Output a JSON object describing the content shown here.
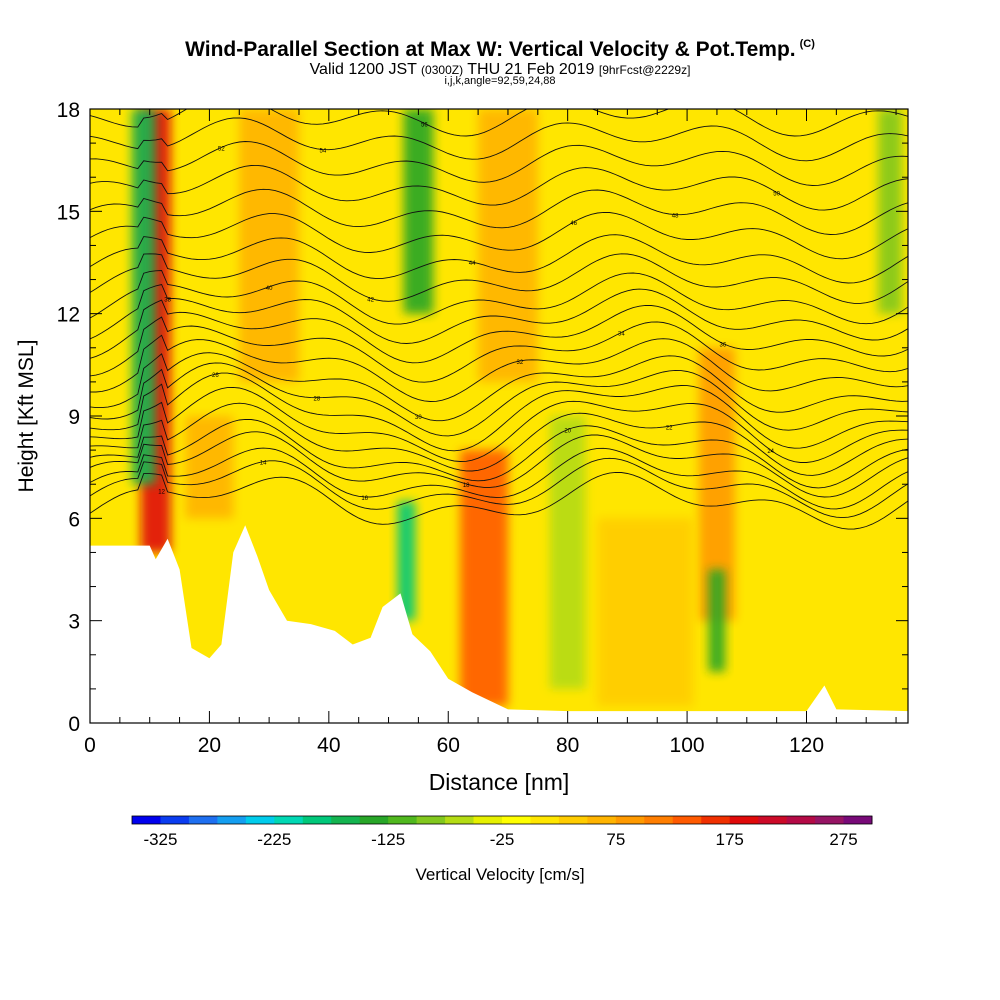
{
  "title": {
    "main": "Wind-Parallel Section at Max W: Vertical Velocity & Pot.Temp.",
    "copyright": "(C)",
    "valid_a": "Valid 1200 JST",
    "valid_z": "(0300Z)",
    "valid_b": "THU 21 Feb 2019",
    "fcst": "[9hrFcst@2229z]",
    "indices": "i,j,k,angle=92,59,24,88"
  },
  "chart_data": {
    "type": "heatmap",
    "xlabel": "Distance [nm]",
    "ylabel": "Height [Kft MSL]",
    "xlim": [
      0,
      137
    ],
    "ylim": [
      0,
      18
    ],
    "x_ticks": [
      0,
      20,
      40,
      60,
      80,
      100,
      120
    ],
    "y_ticks": [
      0,
      3,
      6,
      9,
      12,
      15,
      18
    ],
    "colorbar": {
      "label": "Vertical Velocity [cm/s]",
      "tick_labels": [
        -325,
        -225,
        -125,
        -25,
        75,
        175,
        275
      ],
      "range": [
        -350,
        300
      ],
      "colors": [
        "#0000ee",
        "#0a3cf0",
        "#1e6ff0",
        "#149ef0",
        "#00ccec",
        "#00d8b4",
        "#00c87a",
        "#14b450",
        "#28a628",
        "#50b81e",
        "#82c81e",
        "#b4dc14",
        "#e6f000",
        "#ffff00",
        "#ffe600",
        "#ffcc00",
        "#ffb400",
        "#ff9a00",
        "#ff7e00",
        "#ff5a00",
        "#f03000",
        "#e00a0a",
        "#cc0a28",
        "#b40a46",
        "#961464",
        "#780a78"
      ]
    },
    "terrain_kft": [
      [
        0,
        5.2
      ],
      [
        10,
        5.2
      ],
      [
        11,
        4.8
      ],
      [
        13,
        5.4
      ],
      [
        15,
        4.5
      ],
      [
        17,
        2.2
      ],
      [
        20,
        1.9
      ],
      [
        22,
        2.3
      ],
      [
        24,
        5.0
      ],
      [
        26,
        5.8
      ],
      [
        28,
        4.9
      ],
      [
        30,
        3.9
      ],
      [
        33,
        3.0
      ],
      [
        37,
        2.9
      ],
      [
        41,
        2.7
      ],
      [
        44,
        2.3
      ],
      [
        47,
        2.5
      ],
      [
        49,
        3.4
      ],
      [
        52,
        3.8
      ],
      [
        54,
        2.6
      ],
      [
        57,
        2.1
      ],
      [
        60,
        1.3
      ],
      [
        64,
        0.9
      ],
      [
        70,
        0.4
      ],
      [
        80,
        0.35
      ],
      [
        120,
        0.35
      ],
      [
        123,
        1.1
      ],
      [
        125,
        0.4
      ],
      [
        137,
        0.35
      ]
    ],
    "updrafts": [
      {
        "x": 11,
        "z0": 5,
        "z1": 18,
        "w": 2.5,
        "value": 180
      },
      {
        "x": 30,
        "z0": 10,
        "z1": 18,
        "w": 5,
        "value": 60
      },
      {
        "x": 66,
        "z0": 0.5,
        "z1": 8,
        "w": 4,
        "value": 130
      },
      {
        "x": 70,
        "z0": 10,
        "z1": 18,
        "w": 5,
        "value": 60
      },
      {
        "x": 105,
        "z0": 3,
        "z1": 11,
        "w": 3,
        "value": 90
      },
      {
        "x": 93,
        "z0": 0.5,
        "z1": 6,
        "w": 8,
        "value": 30
      },
      {
        "x": 20,
        "z0": 6,
        "z1": 9,
        "w": 4,
        "value": 60
      }
    ],
    "downdrafts": [
      {
        "x": 9,
        "z0": 7,
        "z1": 18,
        "w": 2,
        "value": -170
      },
      {
        "x": 53,
        "z0": 3,
        "z1": 6.5,
        "w": 1.5,
        "value": -190
      },
      {
        "x": 55,
        "z0": 12,
        "z1": 18,
        "w": 2.5,
        "value": -150
      },
      {
        "x": 105,
        "z0": 1.5,
        "z1": 4.5,
        "w": 1.4,
        "value": -130
      },
      {
        "x": 80,
        "z0": 1,
        "z1": 9,
        "w": 3,
        "value": -70
      },
      {
        "x": 134,
        "z0": 12,
        "z1": 18,
        "w": 2,
        "value": -90
      }
    ],
    "theta_contours": {
      "z_base_kft": [
        6.5,
        6.9,
        7.2,
        7.6,
        7.9,
        8.3,
        8.7,
        9.1,
        9.5,
        9.9,
        10.4,
        10.9,
        11.4,
        11.9,
        12.4,
        13.0,
        13.6,
        14.3,
        15.0,
        15.7,
        16.4,
        17.1,
        17.8
      ],
      "labels": [
        "12",
        "14",
        "16",
        "18",
        "20",
        "22",
        "24",
        "26",
        "28",
        "30",
        "32",
        "34",
        "36",
        "38",
        "40",
        "42",
        "44",
        "46",
        "48",
        "50",
        "52",
        "54",
        "56"
      ]
    }
  }
}
